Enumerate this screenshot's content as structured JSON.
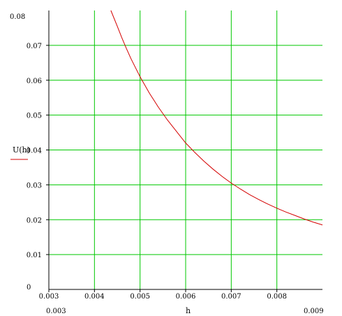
{
  "chart_data": {
    "type": "line",
    "xlabel": "h",
    "ylabel": "U(h)",
    "xlim": [
      0.003,
      0.009
    ],
    "ylim": [
      0,
      0.08
    ],
    "xlim_labels": [
      "0.003",
      "0.009"
    ],
    "ylim_labels": [
      "0",
      "0.08"
    ],
    "x_ticks": [
      "0.003",
      "0.004",
      "0.005",
      "0.006",
      "0.007",
      "0.008"
    ],
    "y_ticks": [
      "0.01",
      "0.02",
      "0.03",
      "0.04",
      "0.05",
      "0.06",
      "0.07"
    ],
    "grid": true,
    "grid_color": "#00c800",
    "axis_color": "#000000",
    "series": [
      {
        "name": "U(h)",
        "color": "#d40000",
        "x": [
          0.00436,
          0.0045,
          0.0046,
          0.0047,
          0.0048,
          0.0049,
          0.005,
          0.0052,
          0.0054,
          0.0056,
          0.0058,
          0.006,
          0.0062,
          0.0064,
          0.0066,
          0.0068,
          0.007,
          0.0072,
          0.0074,
          0.0076,
          0.0078,
          0.008,
          0.0082,
          0.0084,
          0.0086,
          0.0088,
          0.009
        ],
        "y": [
          0.08,
          0.0755,
          0.0722,
          0.0691,
          0.0662,
          0.0636,
          0.061,
          0.0564,
          0.0523,
          0.0486,
          0.0453,
          0.042,
          0.0393,
          0.0368,
          0.0345,
          0.0324,
          0.0305,
          0.0288,
          0.0272,
          0.0258,
          0.0245,
          0.0233,
          0.0222,
          0.0212,
          0.0202,
          0.0193,
          0.0185
        ]
      }
    ]
  }
}
